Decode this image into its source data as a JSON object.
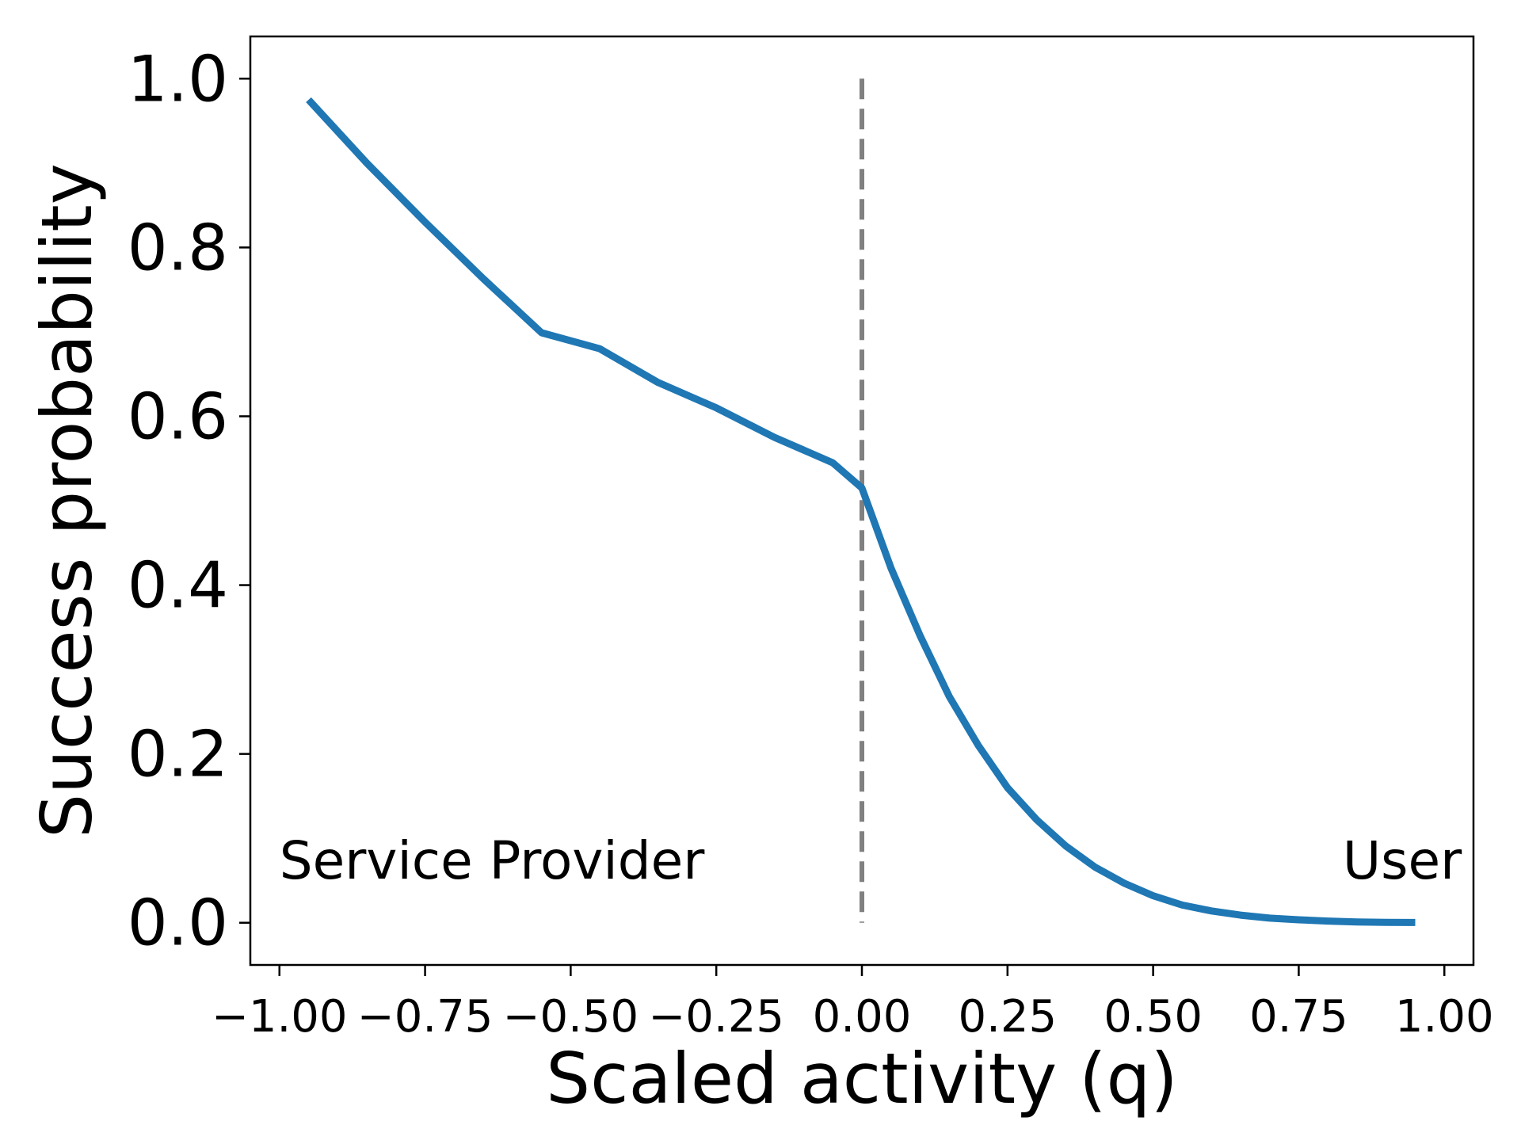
{
  "chart_data": {
    "type": "line",
    "title": "",
    "xlabel": "Scaled activity (q)",
    "ylabel": "Success probability",
    "xlim": [
      -1.05,
      1.05
    ],
    "ylim": [
      -0.05,
      1.05
    ],
    "xticks": [
      -1.0,
      -0.75,
      -0.5,
      -0.25,
      0.0,
      0.25,
      0.5,
      0.75,
      1.0
    ],
    "xtick_labels": [
      "−1.00",
      "−0.75",
      "−0.50",
      "−0.25",
      "0.00",
      "0.25",
      "0.50",
      "0.75",
      "1.00"
    ],
    "yticks": [
      0.0,
      0.2,
      0.4,
      0.6,
      0.8,
      1.0
    ],
    "ytick_labels": [
      "0.0",
      "0.2",
      "0.4",
      "0.6",
      "0.8",
      "1.0"
    ],
    "grid": false,
    "legend": null,
    "annotations": [
      {
        "text": "Service Provider",
        "x": -1.0,
        "y": 0.075,
        "align": "left"
      },
      {
        "text": "User",
        "x": 1.03,
        "y": 0.075,
        "align": "right"
      }
    ],
    "vline": {
      "x": 0.0,
      "y_range": [
        0.0,
        1.0
      ],
      "style": "dashed",
      "color": "#808080"
    },
    "series": [
      {
        "color": "#1f77b4",
        "x": [
          -0.95,
          -0.85,
          -0.75,
          -0.65,
          -0.55,
          -0.45,
          -0.35,
          -0.25,
          -0.15,
          -0.05,
          0.0,
          0.05,
          0.1,
          0.15,
          0.2,
          0.25,
          0.3,
          0.35,
          0.4,
          0.45,
          0.5,
          0.55,
          0.6,
          0.65,
          0.7,
          0.75,
          0.8,
          0.85,
          0.9,
          0.95
        ],
        "y": [
          0.975,
          0.9,
          0.83,
          0.763,
          0.699,
          0.68,
          0.64,
          0.61,
          0.575,
          0.545,
          0.515,
          0.42,
          0.34,
          0.268,
          0.21,
          0.16,
          0.122,
          0.091,
          0.066,
          0.047,
          0.032,
          0.021,
          0.014,
          0.009,
          0.0055,
          0.0035,
          0.002,
          0.001,
          0.0005,
          0.0003
        ]
      }
    ]
  }
}
